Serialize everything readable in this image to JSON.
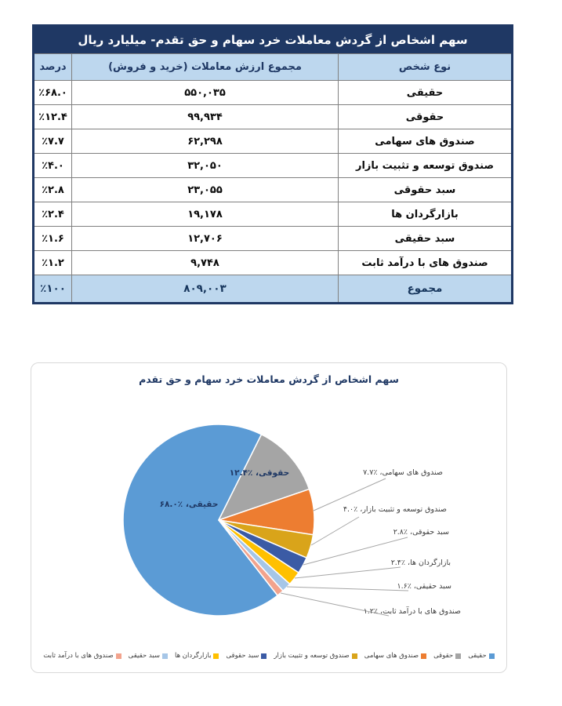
{
  "table": {
    "title": "سهم اشخاص از گردش معاملات خرد سهام و حق تقدم- میلیارد ریال",
    "columns": {
      "type": "نوع شخص",
      "value": "مجموع ارزش معاملات (خرید و فروش)",
      "percent": "درصد"
    },
    "rows": [
      {
        "type": "حقیقی",
        "value": "۵۵۰,۰۳۵",
        "percent": "٪۶۸.۰"
      },
      {
        "type": "حقوقی",
        "value": "۹۹,۹۳۴",
        "percent": "٪۱۲.۴"
      },
      {
        "type": "صندوق های سهامی",
        "value": "۶۲,۲۹۸",
        "percent": "٪۷.۷"
      },
      {
        "type": "صندوق توسعه و تثبیت بازار",
        "value": "۳۲,۰۵۰",
        "percent": "٪۴.۰"
      },
      {
        "type": "سبد حقوقی",
        "value": "۲۳,۰۵۵",
        "percent": "٪۲.۸"
      },
      {
        "type": "بازارگردان ها",
        "value": "۱۹,۱۷۸",
        "percent": "٪۲.۴"
      },
      {
        "type": "سبد حقیقی",
        "value": "۱۲,۷۰۶",
        "percent": "٪۱.۶"
      },
      {
        "type": "صندوق های با درآمد ثابت",
        "value": "۹,۷۴۸",
        "percent": "٪۱.۲"
      }
    ],
    "total": {
      "type": "مجموع",
      "value": "۸۰۹,۰۰۳",
      "percent": "٪۱۰۰"
    },
    "colors": {
      "title_bg": "#1F3864",
      "title_text": "#FFFFFF",
      "header_bg": "#BDD7EE",
      "header_text": "#1F3864",
      "total_bg": "#BDD7EE",
      "outer_border": "#1F3864",
      "grid": "#808080"
    }
  },
  "chart_data": {
    "type": "pie",
    "title": "سهم اشخاص از گردش معاملات خرد سهام و حق تقدم",
    "categories": [
      "حقیقی",
      "حقوقی",
      "صندوق های سهامی",
      "صندوق توسعه و تثبیت بازار",
      "سبد حقوقی",
      "بازارگردان ها",
      "سبد حقیقی",
      "صندوق های با درآمد ثابت"
    ],
    "values": [
      68.0,
      12.4,
      7.7,
      4.0,
      2.8,
      2.4,
      1.6,
      1.2
    ],
    "absolute_values": [
      550035,
      99934,
      62298,
      32050,
      23055,
      19178,
      12706,
      9748
    ],
    "total_absolute": 809003,
    "slice_labels": [
      "حقیقی، ٪۶۸.۰",
      "حقوقی، ٪۱۲.۴",
      "صندوق های سهامی، ٪۷.۷",
      "صندوق توسعه و تثبیت بازار، ٪۴.۰",
      "سبد حقوقی، ٪۲.۸",
      "بازارگردان ها، ٪۲.۴",
      "سبد حقیقی، ٪۱.۶",
      "صندوق های با درآمد ثابت، ٪۱.۲"
    ],
    "colors": [
      "#5B9BD5",
      "#A5A5A5",
      "#ED7D31",
      "#D9A41A",
      "#3B5BA5",
      "#FFC000",
      "#A6C6E7",
      "#F2A38D"
    ],
    "leader_line_color": "#A6A6A6",
    "legend_position": "bottom",
    "direction": "clockwise",
    "start_angle_deg": 142
  }
}
